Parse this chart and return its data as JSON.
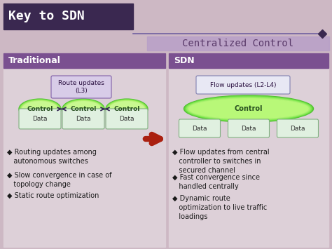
{
  "title": "Key to SDN",
  "subtitle": "Centralized Control",
  "bg_color": "#cdb8c4",
  "title_box_color": "#3a2850",
  "title_line_color": "#7060a0",
  "subtitle_bg": "#b8a0c8",
  "subtitle_text_color": "#5a3a6a",
  "header_color": "#7a5090",
  "panel_bg": "#ddd0d8",
  "trad_label": "Traditional",
  "sdn_label": "SDN",
  "trad_bullets": [
    "◆ Routing updates among\n   autonomous switches",
    "◆ Slow convergence in case of\n   topology change",
    "◆ Static route optimization"
  ],
  "sdn_bullets": [
    "◆ Flow updates from central\n   controller to switches in\n   secured channel",
    "◆ Fast convergence since\n   handled centrally",
    "◆ Dynamic route\n   optimization to live traffic\n   loadings"
  ],
  "route_updates_label": "Route updates\n(L3)",
  "flow_updates_label": "Flow updates (L2-L4)",
  "arrow_color": "#aa2010",
  "green_light": "#90e070",
  "green_dark": "#40a020",
  "green_mid": "#70c840",
  "ctrl_color": "#e8ffe0",
  "data_box_color": "#e8f8e8",
  "data_box_edge": "#a0c8a0",
  "arrow_dark": "#302050",
  "font_color": "#1a1a1a"
}
